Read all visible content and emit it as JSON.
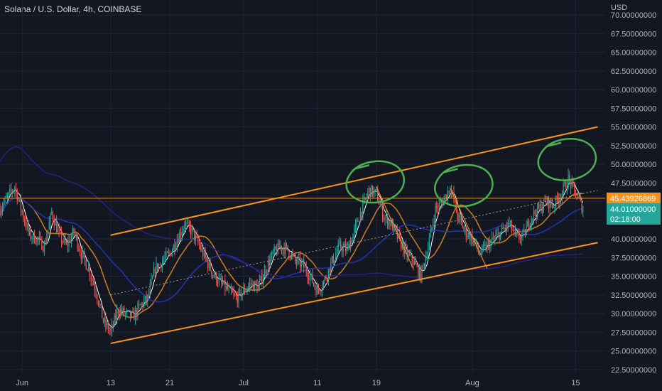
{
  "header": {
    "title": "Solana / U.S. Dollar, 4h, COINBASE"
  },
  "colors": {
    "background": "#131722",
    "grid": "#1f2433",
    "text": "#b2b5be",
    "up": "#26a69a",
    "down": "#ef5350",
    "channel": "#f7931a",
    "circles": "#4caf50",
    "ma_fast": "#ffffff",
    "ma_mid": "#c17a1f",
    "ma_slow": "#2133a8",
    "ma_long": "#2a1f7a",
    "hline": "#f7931a",
    "price_tag": "#f7931a",
    "last_tag": "#26a69a"
  },
  "chart_data": {
    "type": "candlestick",
    "title": "Solana / U.S. Dollar, 4h, COINBASE",
    "currency": "USD",
    "ylim": [
      22.0,
      72.0
    ],
    "y_ticks": [
      22.5,
      25.0,
      27.5,
      30.0,
      32.5,
      35.0,
      37.5,
      40.0,
      42.5,
      45.0,
      47.5,
      50.0,
      52.5,
      55.0,
      57.5,
      60.0,
      62.5,
      65.0,
      67.5,
      70.0
    ],
    "y_tick_labels": [
      "22.50000000",
      "25.00000000",
      "27.50000000",
      "30.00000000",
      "32.50000000",
      "35.00000000",
      "37.50000000",
      "40.00000000",
      "42.50000000",
      "45.00000000",
      "47.50000000",
      "50.00000000",
      "52.50000000",
      "55.00000000",
      "57.50000000",
      "60.00000000",
      "62.50000000",
      "65.00000000",
      "67.50000000",
      "70.00000000"
    ],
    "x_ticks": [
      {
        "label": "Jun",
        "day": 1
      },
      {
        "label": "13",
        "day": 13
      },
      {
        "label": "21",
        "day": 21
      },
      {
        "label": "Jul",
        "day": 31
      },
      {
        "label": "11",
        "day": 41
      },
      {
        "label": "19",
        "day": 49
      },
      {
        "label": "Aug",
        "day": 62
      },
      {
        "label": "15",
        "day": 76
      }
    ],
    "price_key_points": [
      [
        -2,
        44.0
      ],
      [
        -1,
        45.5
      ],
      [
        0,
        47.0
      ],
      [
        1,
        43.5
      ],
      [
        2,
        40.5
      ],
      [
        3,
        40.0
      ],
      [
        4,
        39.0
      ],
      [
        5,
        43.5
      ],
      [
        6,
        40.5
      ],
      [
        7,
        39.0
      ],
      [
        8,
        41.0
      ],
      [
        9,
        38.0
      ],
      [
        10,
        36.0
      ],
      [
        11,
        33.0
      ],
      [
        12,
        29.0
      ],
      [
        13,
        27.5
      ],
      [
        14,
        30.5
      ],
      [
        15,
        30.0
      ],
      [
        16,
        29.5
      ],
      [
        17,
        31.0
      ],
      [
        18,
        32.0
      ],
      [
        19,
        36.0
      ],
      [
        20,
        37.0
      ],
      [
        21,
        38.0
      ],
      [
        22,
        40.0
      ],
      [
        23,
        42.0
      ],
      [
        24,
        41.0
      ],
      [
        25,
        39.0
      ],
      [
        26,
        37.0
      ],
      [
        27,
        35.0
      ],
      [
        28,
        34.0
      ],
      [
        29,
        33.0
      ],
      [
        30,
        32.0
      ],
      [
        31,
        33.0
      ],
      [
        32,
        34.0
      ],
      [
        33,
        33.5
      ],
      [
        34,
        36.0
      ],
      [
        35,
        38.0
      ],
      [
        36,
        39.0
      ],
      [
        37,
        38.5
      ],
      [
        38,
        37.0
      ],
      [
        39,
        36.5
      ],
      [
        40,
        35.0
      ],
      [
        41,
        33.0
      ],
      [
        42,
        34.5
      ],
      [
        43,
        37.0
      ],
      [
        44,
        39.0
      ],
      [
        45,
        38.5
      ],
      [
        46,
        41.0
      ],
      [
        47,
        44.0
      ],
      [
        48,
        46.5
      ],
      [
        49,
        46.0
      ],
      [
        50,
        43.0
      ],
      [
        51,
        42.0
      ],
      [
        52,
        40.0
      ],
      [
        53,
        38.0
      ],
      [
        54,
        37.0
      ],
      [
        55,
        35.0
      ],
      [
        56,
        39.0
      ],
      [
        57,
        44.0
      ],
      [
        58,
        45.0
      ],
      [
        59,
        47.0
      ],
      [
        60,
        43.0
      ],
      [
        61,
        41.0
      ],
      [
        62,
        40.0
      ],
      [
        63,
        38.0
      ],
      [
        64,
        39.0
      ],
      [
        65,
        40.0
      ],
      [
        66,
        41.0
      ],
      [
        67,
        42.0
      ],
      [
        68,
        40.0
      ],
      [
        69,
        40.5
      ],
      [
        70,
        43.0
      ],
      [
        71,
        44.0
      ],
      [
        72,
        45.0
      ],
      [
        73,
        44.5
      ],
      [
        74,
        46.0
      ],
      [
        75,
        48.0
      ],
      [
        76,
        46.0
      ],
      [
        77,
        44.0
      ]
    ],
    "channel": {
      "upper": [
        [
          13,
          40.5
        ],
        [
          79,
          55.0
        ]
      ],
      "lower": [
        [
          13,
          26.0
        ],
        [
          79,
          39.5
        ]
      ]
    },
    "horizontal_level": 45.43926869,
    "dotted_trend": [
      [
        13,
        32.5
      ],
      [
        79,
        46.5
      ]
    ],
    "pattern_lines": [
      [
        [
          49,
          47.0
        ],
        [
          54,
          36.0
        ]
      ],
      [
        [
          59,
          46.8
        ],
        [
          64,
          36.0
        ]
      ]
    ],
    "circles": [
      {
        "day": 49,
        "price": 47.5
      },
      {
        "day": 61,
        "price": 47.0
      },
      {
        "day": 75,
        "price": 50.5
      }
    ],
    "moving_averages": [
      {
        "key": "ma_fast",
        "period": 6
      },
      {
        "key": "ma_mid",
        "period": 24
      },
      {
        "key": "ma_slow",
        "period": 60
      },
      {
        "key": "ma_long",
        "period": 160
      }
    ]
  },
  "price_labels": {
    "level_value": "45.43926869",
    "last_price": "44.01000000",
    "countdown": "02:18:00",
    "axis_unit": "USD"
  }
}
